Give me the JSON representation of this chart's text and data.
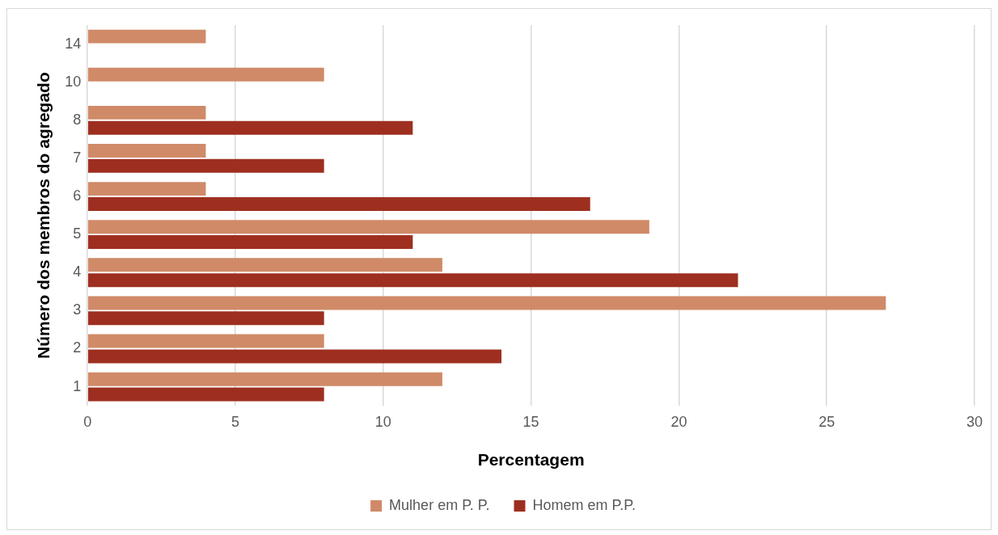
{
  "chart_data": {
    "type": "bar",
    "orientation": "horizontal",
    "xlabel": "Percentagem",
    "ylabel": "Número dos membros do agregado",
    "categories": [
      "14",
      "10",
      "8",
      "7",
      "6",
      "5",
      "4",
      "3",
      "2",
      "1"
    ],
    "series": [
      {
        "name": "Mulher em P. P.",
        "color": "#d08a68",
        "values": [
          4,
          8,
          4,
          4,
          4,
          19,
          12,
          27,
          8,
          12
        ]
      },
      {
        "name": "Homem em P.P.",
        "color": "#9e2f20",
        "values": [
          null,
          null,
          11,
          8,
          17,
          11,
          22,
          8,
          14,
          8
        ]
      }
    ],
    "xlim": [
      0,
      30
    ],
    "xticks": [
      0,
      5,
      10,
      15,
      20,
      25,
      30
    ],
    "grid": "x",
    "legend": "bottom"
  }
}
